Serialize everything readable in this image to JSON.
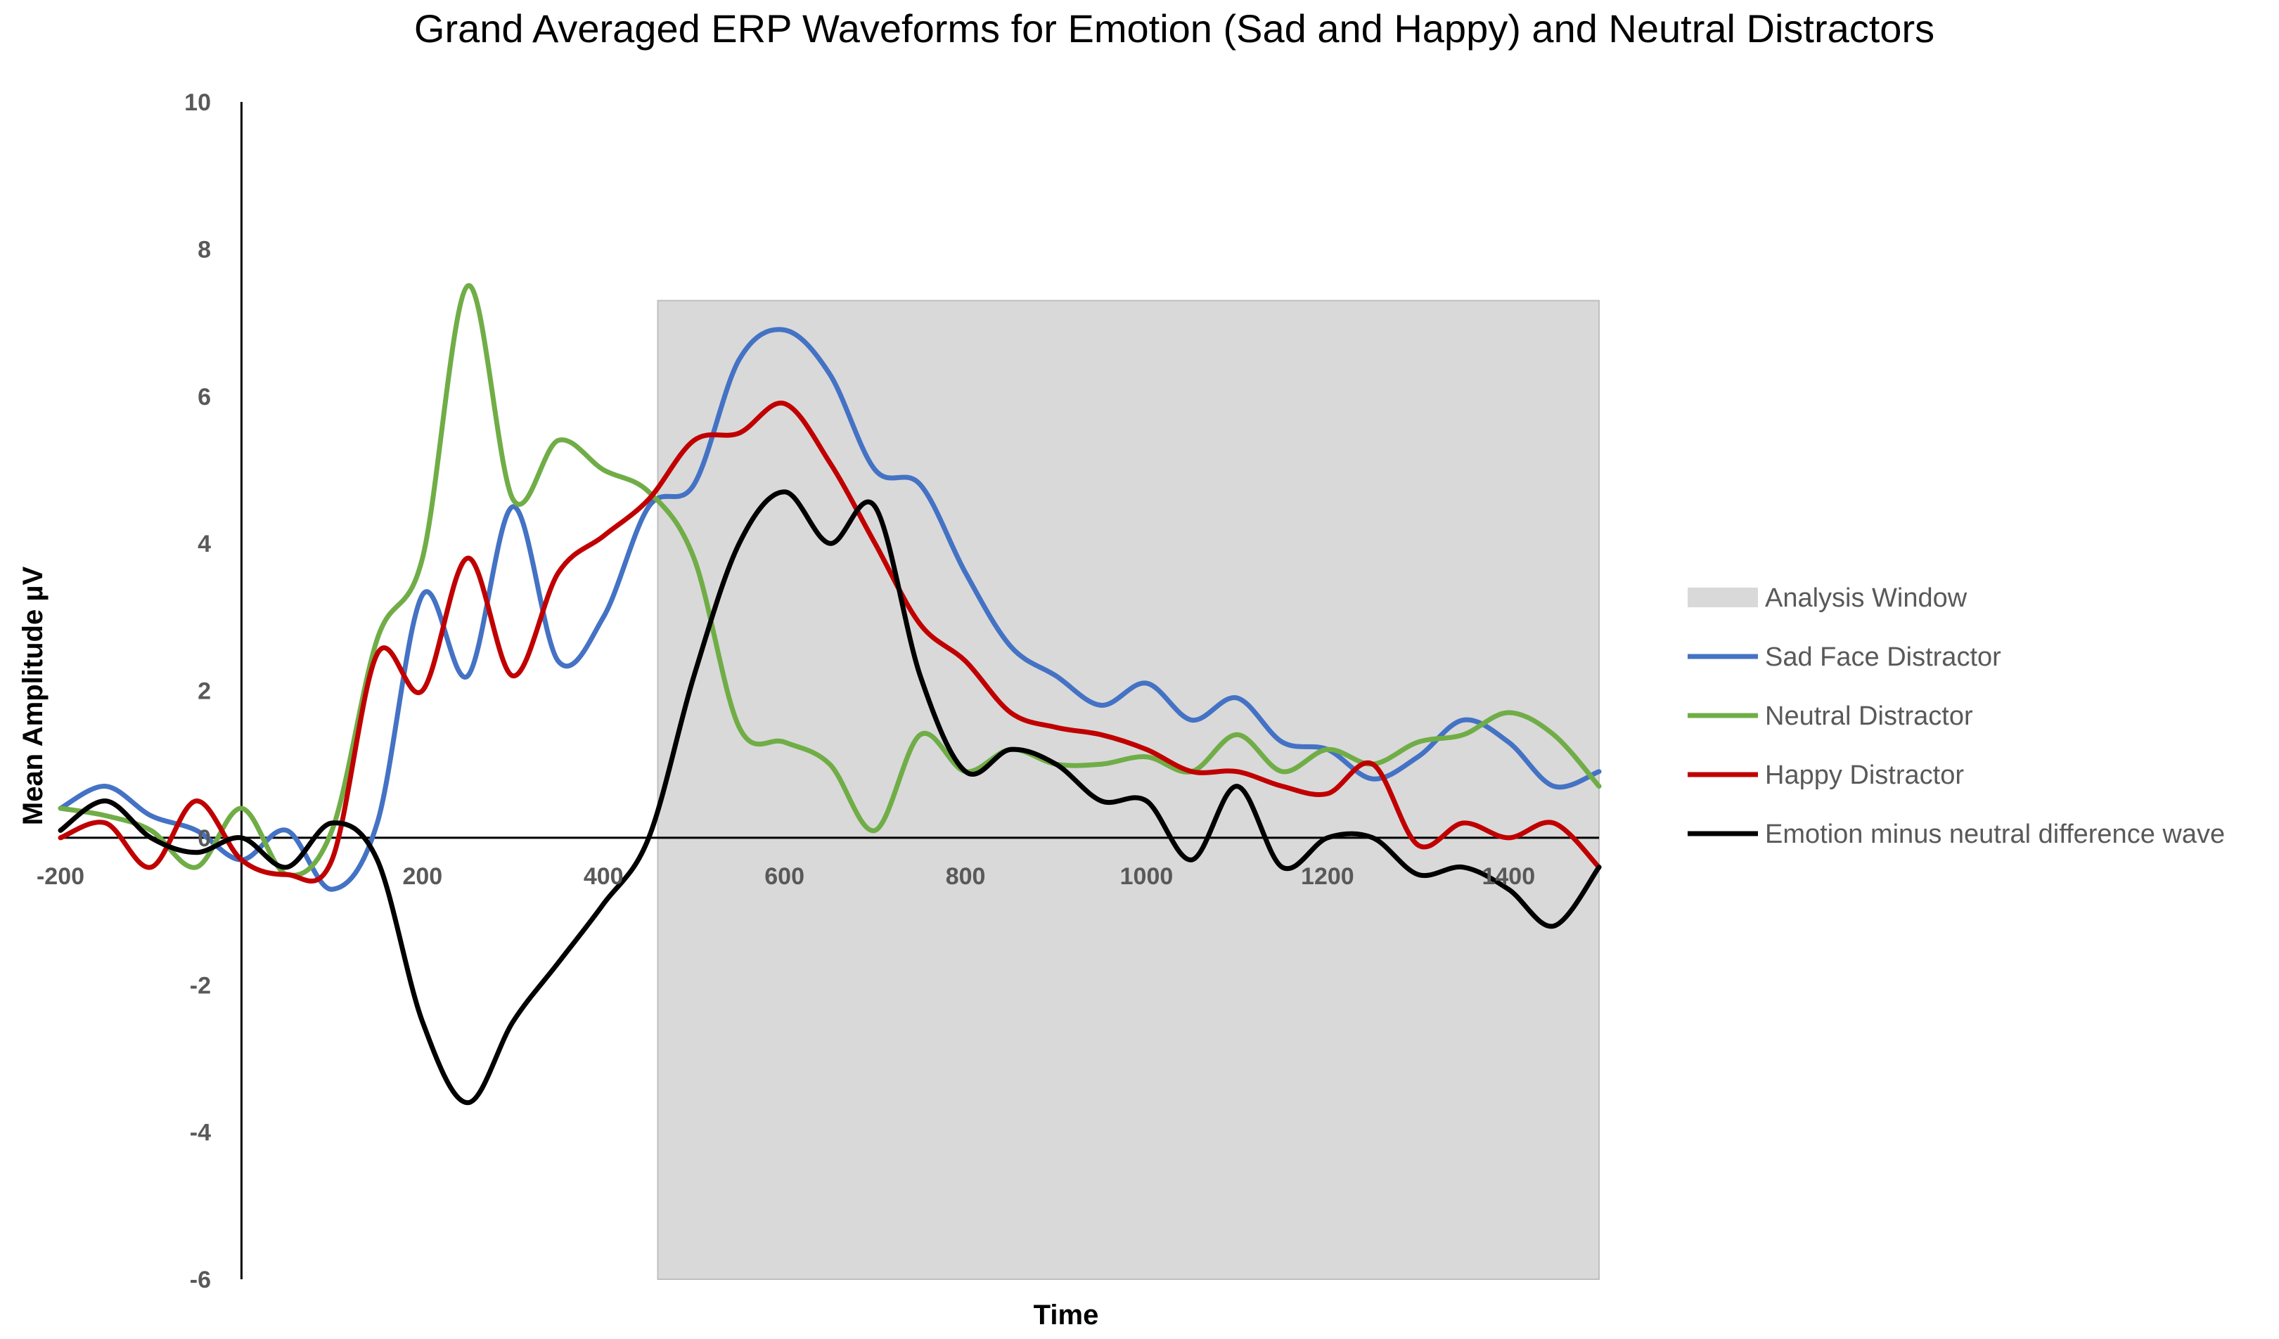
{
  "chart_data": {
    "type": "line",
    "title": "Grand Averaged ERP Waveforms for Emotion (Sad and Happy) and Neutral Distractors",
    "xlabel": "Time",
    "ylabel": "Mean Amplitude µV",
    "xlim": [
      -200,
      1500
    ],
    "ylim": [
      -6,
      10
    ],
    "x_ticks": [
      -200,
      200,
      400,
      600,
      800,
      1000,
      1200,
      1400
    ],
    "x_tick_labels": [
      "-200",
      "200",
      "400",
      "600",
      "800",
      "1000",
      "1200",
      "1400"
    ],
    "y_ticks": [
      10,
      8,
      6,
      4,
      2,
      0,
      -2,
      -4,
      -6
    ],
    "y_tick_labels": [
      "10",
      "8",
      "6",
      "4",
      "2",
      "0",
      "-2",
      "-4",
      "-6"
    ],
    "grid": false,
    "legend_position": "right",
    "analysis_window": {
      "name": "Analysis Window",
      "x_start": 460,
      "x_end": 1500,
      "y_top": 7.3,
      "color": "#d9d9d9"
    },
    "x": [
      -200,
      -150,
      -100,
      -50,
      0,
      50,
      100,
      150,
      200,
      250,
      300,
      350,
      400,
      450,
      500,
      550,
      600,
      650,
      700,
      750,
      800,
      850,
      900,
      950,
      1000,
      1050,
      1100,
      1150,
      1200,
      1250,
      1300,
      1350,
      1400,
      1450,
      1500
    ],
    "series": [
      {
        "name": "Sad Face Distractor",
        "color": "#4472c4",
        "values": [
          0.4,
          0.7,
          0.3,
          0.1,
          -0.3,
          0.1,
          -0.7,
          0.2,
          3.3,
          2.2,
          4.5,
          2.4,
          3.0,
          4.5,
          4.8,
          6.5,
          6.9,
          6.3,
          5.0,
          4.8,
          3.6,
          2.6,
          2.2,
          1.8,
          2.1,
          1.6,
          1.9,
          1.3,
          1.2,
          0.8,
          1.1,
          1.6,
          1.3,
          0.7,
          0.9
        ]
      },
      {
        "name": "Neutral Distractor",
        "color": "#70ad47",
        "values": [
          0.4,
          0.3,
          0.1,
          -0.4,
          0.4,
          -0.5,
          0.1,
          2.7,
          3.8,
          7.5,
          4.6,
          5.4,
          5.0,
          4.7,
          3.8,
          1.5,
          1.3,
          1.0,
          0.1,
          1.4,
          0.9,
          1.2,
          1.0,
          1.0,
          1.1,
          0.9,
          1.4,
          0.9,
          1.2,
          1.0,
          1.3,
          1.4,
          1.7,
          1.4,
          0.7
        ]
      },
      {
        "name": "Happy Distractor",
        "color": "#c00000",
        "values": [
          0.0,
          0.2,
          -0.4,
          0.5,
          -0.3,
          -0.5,
          -0.3,
          2.5,
          2.0,
          3.8,
          2.2,
          3.6,
          4.1,
          4.6,
          5.4,
          5.5,
          5.9,
          5.1,
          4.0,
          2.9,
          2.4,
          1.7,
          1.5,
          1.4,
          1.2,
          0.9,
          0.9,
          0.7,
          0.6,
          1.0,
          -0.1,
          0.2,
          0.0,
          0.2,
          -0.4
        ]
      },
      {
        "name": "Emotion minus neutral difference wave",
        "color": "#000000",
        "values": [
          0.1,
          0.5,
          0.0,
          -0.2,
          0.0,
          -0.4,
          0.2,
          -0.3,
          -2.5,
          -3.6,
          -2.5,
          -1.7,
          -0.9,
          0.0,
          2.2,
          4.0,
          4.7,
          4.0,
          4.5,
          2.2,
          0.9,
          1.2,
          1.0,
          0.5,
          0.5,
          -0.3,
          0.7,
          -0.4,
          0.0,
          0.0,
          -0.5,
          -0.4,
          -0.7,
          -1.2,
          -0.4
        ]
      }
    ],
    "legend": [
      {
        "label": "Analysis Window",
        "color": "#d9d9d9",
        "kind": "area"
      },
      {
        "label": "Sad Face Distractor",
        "color": "#4472c4",
        "kind": "line"
      },
      {
        "label": "Neutral Distractor",
        "color": "#70ad47",
        "kind": "line"
      },
      {
        "label": "Happy Distractor",
        "color": "#c00000",
        "kind": "line"
      },
      {
        "label": "Emotion minus neutral difference wave",
        "color": "#000000",
        "kind": "line"
      }
    ]
  }
}
